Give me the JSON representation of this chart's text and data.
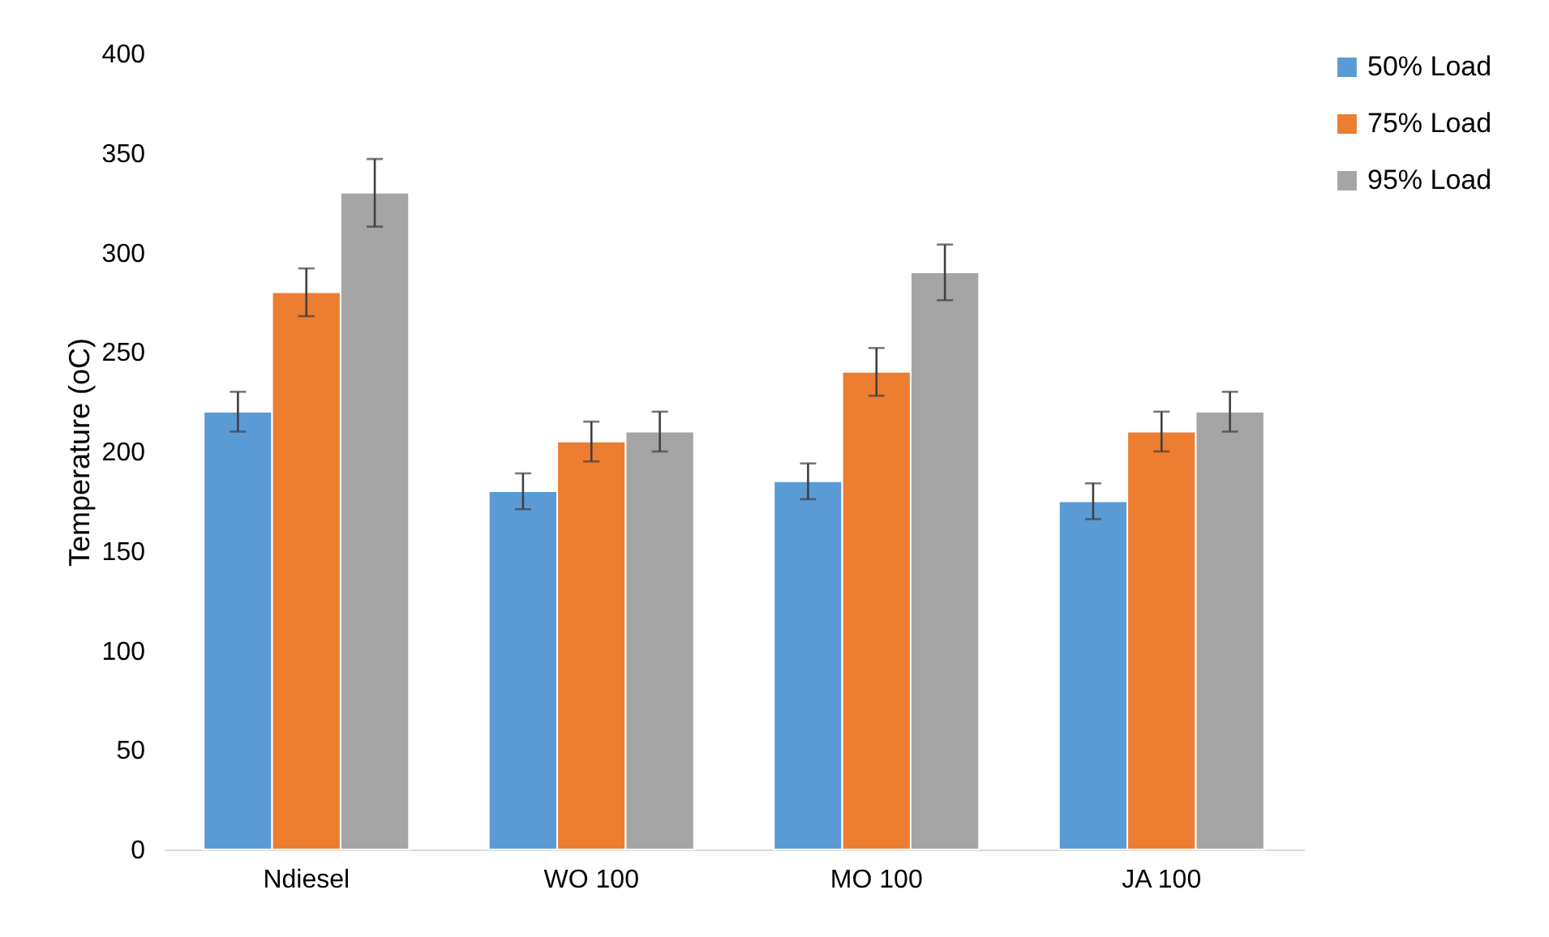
{
  "chart_data": {
    "type": "bar",
    "ylabel": "Temperature (oC)",
    "categories": [
      "Ndiesel",
      "WO 100",
      "MO 100",
      "JA 100"
    ],
    "series": [
      {
        "name": "50% Load",
        "color": "#5b9bd5",
        "values": [
          220,
          180,
          185,
          175
        ],
        "errors": [
          10,
          9,
          9,
          9
        ]
      },
      {
        "name": "75% Load",
        "color": "#ed7d31",
        "values": [
          280,
          205,
          240,
          210
        ],
        "errors": [
          12,
          10,
          12,
          10
        ]
      },
      {
        "name": "95% Load",
        "color": "#a5a5a5",
        "values": [
          330,
          210,
          290,
          220
        ],
        "errors": [
          17,
          10,
          14,
          10
        ]
      }
    ],
    "ylim": [
      0,
      400
    ],
    "yticks": [
      0,
      50,
      100,
      150,
      200,
      250,
      300,
      350,
      400
    ],
    "grid": false,
    "legend": "right"
  }
}
